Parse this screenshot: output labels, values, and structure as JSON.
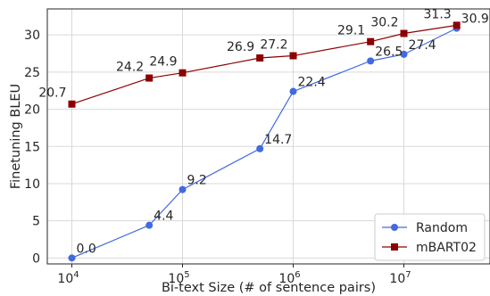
{
  "chart_data": {
    "type": "line",
    "xlabel": "Bi-text Size (# of sentence pairs)",
    "ylabel": "Finetuning BLEU",
    "xscale": "log",
    "xlim": [
      6000,
      60000000
    ],
    "ylim": [
      -0.8,
      33.5
    ],
    "x_tick_base": "10",
    "x_ticks": [
      {
        "value": 10000,
        "exp": "4"
      },
      {
        "value": 100000,
        "exp": "5"
      },
      {
        "value": 1000000,
        "exp": "6"
      },
      {
        "value": 10000000,
        "exp": "7"
      }
    ],
    "y_ticks": [
      0,
      5,
      10,
      15,
      20,
      25,
      30
    ],
    "grid": true,
    "legend_position": "bottom-right",
    "x": [
      10000,
      50000,
      100000,
      500000,
      1000000,
      5000000,
      10000000,
      30000000
    ],
    "series": [
      {
        "name": "Random",
        "color": "#4169e1",
        "marker": "circle",
        "values": [
          0.0,
          4.4,
          9.2,
          14.7,
          22.4,
          26.5,
          27.4,
          30.9
        ],
        "labels": [
          "0.0",
          "4.4",
          "9.2",
          "14.7",
          "22.4",
          "26.5",
          "27.4",
          "30.9"
        ]
      },
      {
        "name": "mBART02",
        "color": "#8b0000",
        "marker": "square",
        "values": [
          20.7,
          24.2,
          24.9,
          26.9,
          27.2,
          29.1,
          30.2,
          31.3
        ],
        "labels": [
          "20.7",
          "24.2",
          "24.9",
          "26.9",
          "27.2",
          "29.1",
          "30.2",
          "31.3"
        ]
      }
    ]
  }
}
